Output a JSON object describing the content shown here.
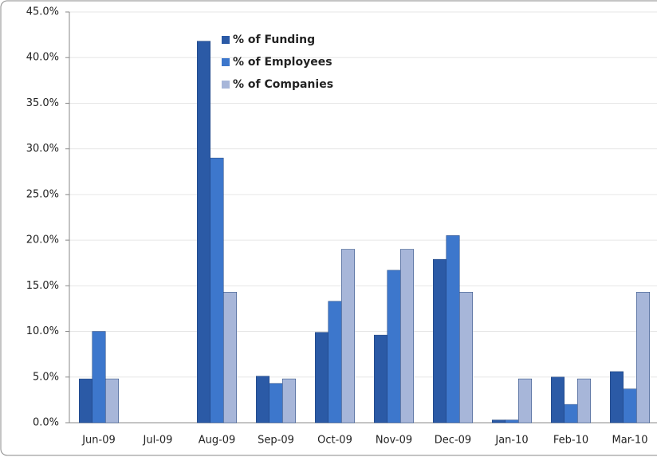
{
  "chart_data": {
    "type": "bar",
    "categories": [
      "Jun-09",
      "Jul-09",
      "Aug-09",
      "Sep-09",
      "Oct-09",
      "Nov-09",
      "Dec-09",
      "Jan-10",
      "Feb-10",
      "Mar-10"
    ],
    "series": [
      {
        "name": "% of Funding",
        "color": "#2b5aa6",
        "values": [
          4.8,
          0,
          41.8,
          5.1,
          9.9,
          9.6,
          17.9,
          0.3,
          5.0,
          5.6
        ]
      },
      {
        "name": "% of Employees",
        "color": "#3d77cc",
        "values": [
          10.0,
          0,
          29.0,
          4.3,
          13.3,
          16.7,
          20.5,
          0.3,
          2.0,
          3.7
        ]
      },
      {
        "name": "% of Companies",
        "color": "#a7b6d9",
        "values": [
          4.8,
          0,
          14.3,
          4.8,
          19.0,
          19.0,
          14.3,
          4.8,
          4.8,
          14.3
        ]
      }
    ],
    "ylim": [
      0,
      45
    ],
    "yticks": [
      {
        "value": 0,
        "label": "0.0%"
      },
      {
        "value": 5,
        "label": "5.0%"
      },
      {
        "value": 10,
        "label": "10.0%"
      },
      {
        "value": 15,
        "label": "15.0%"
      },
      {
        "value": 20,
        "label": "20.0%"
      },
      {
        "value": 25,
        "label": "25.0%"
      },
      {
        "value": 30,
        "label": "30.0%"
      },
      {
        "value": 35,
        "label": "35.0%"
      },
      {
        "value": 40,
        "label": "40.0%"
      },
      {
        "value": 45,
        "label": "45.0%"
      }
    ],
    "grid": true,
    "legend": "top-left"
  }
}
